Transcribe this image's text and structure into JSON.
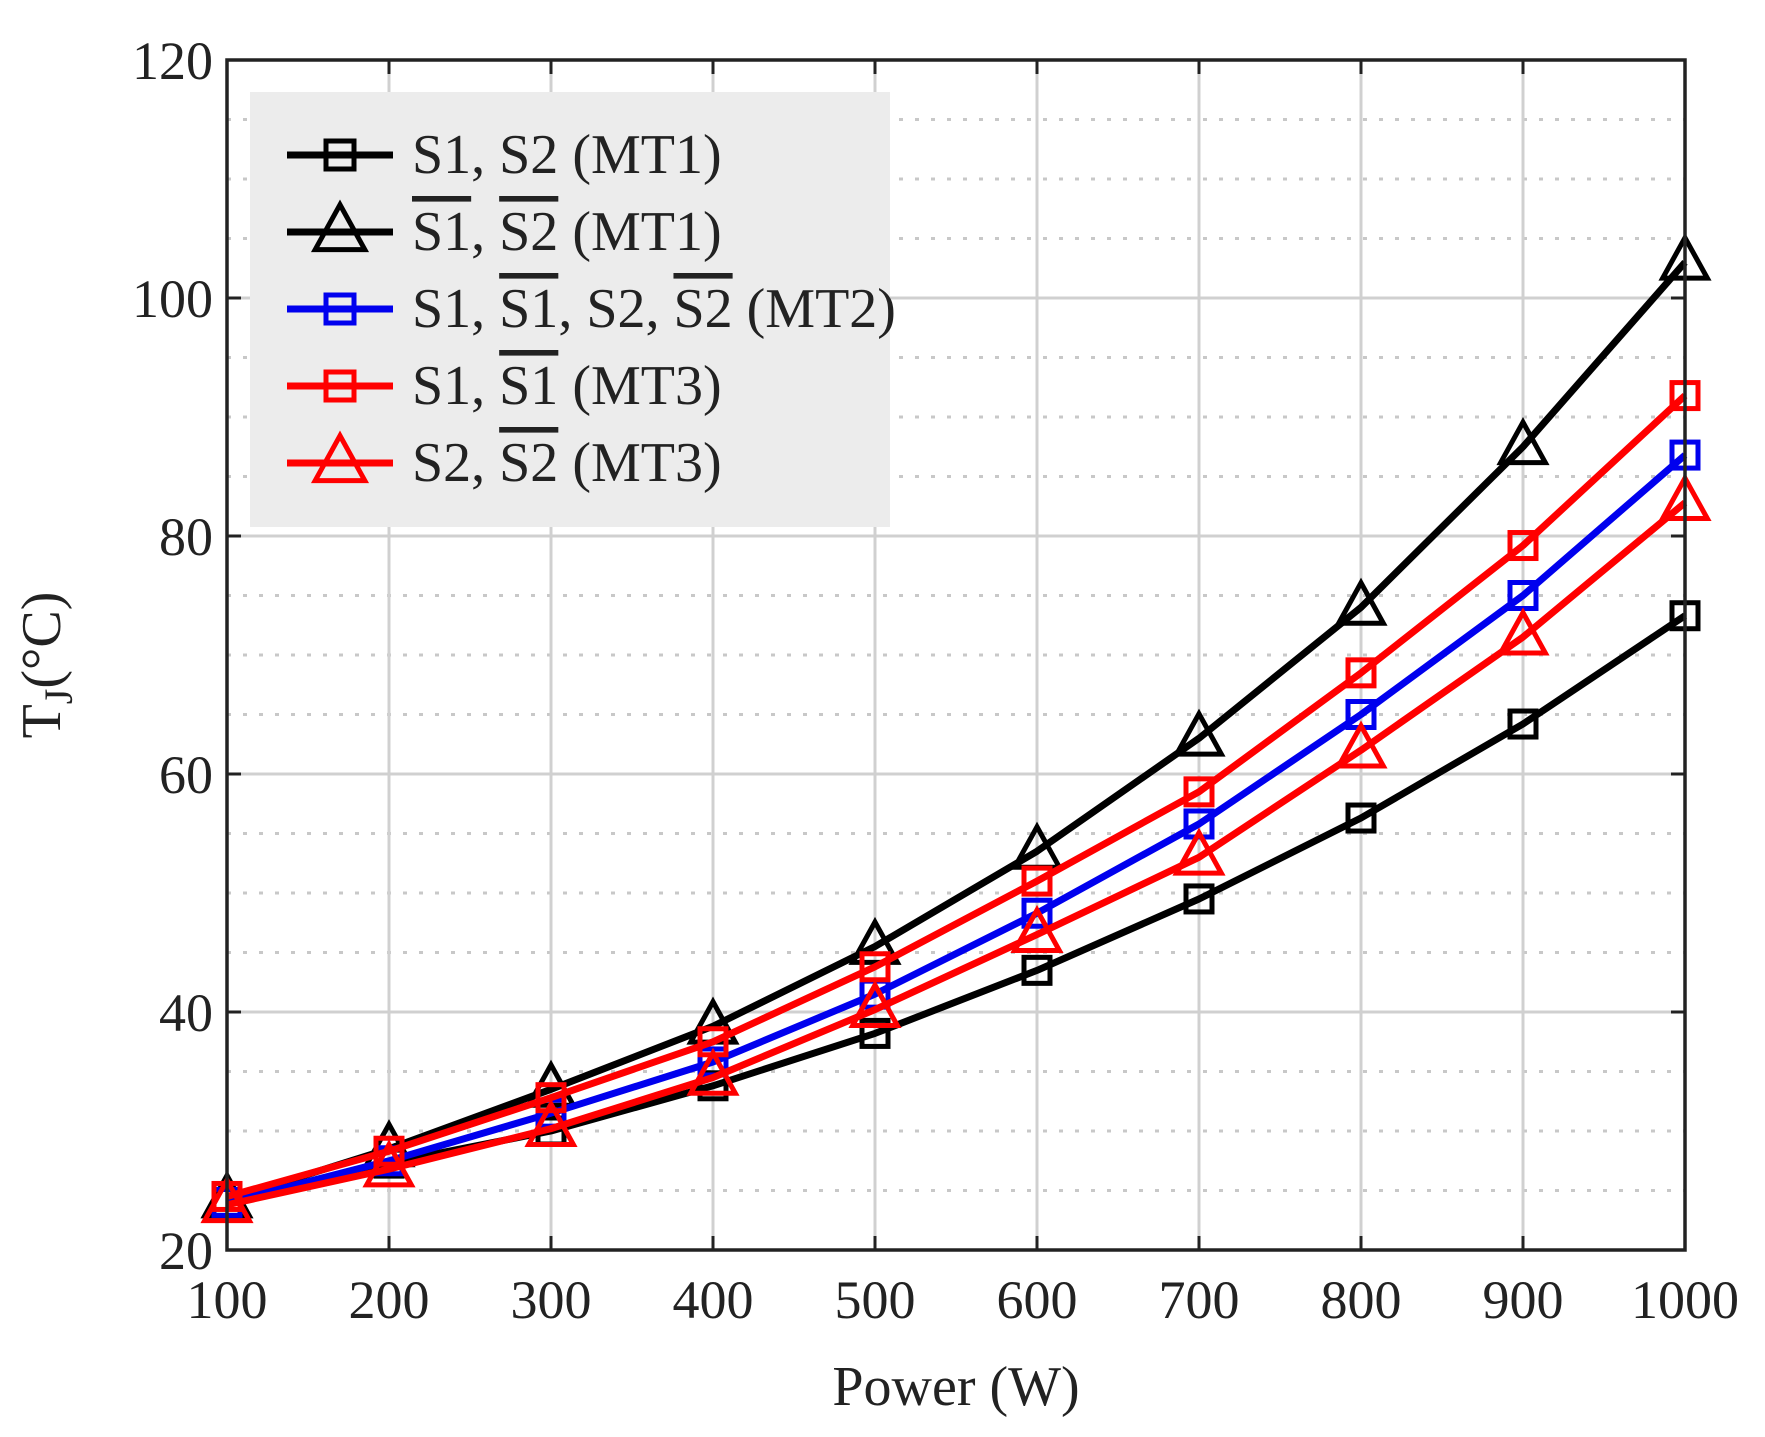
{
  "chart_data": {
    "type": "line",
    "title": "",
    "xlabel": "Power (W)",
    "ylabel_main": "T",
    "ylabel_sub": "J",
    "ylabel_unit": "(°C)",
    "x": [
      100,
      200,
      300,
      400,
      500,
      600,
      700,
      800,
      900,
      1000
    ],
    "xlim": [
      100,
      1000
    ],
    "ylim": [
      20,
      120
    ],
    "x_ticks": [
      "100",
      "200",
      "300",
      "400",
      "500",
      "600",
      "700",
      "800",
      "900",
      "1000"
    ],
    "y_ticks": [
      "20",
      "40",
      "60",
      "80",
      "100",
      "120"
    ],
    "grid": "major solid, minor dotted",
    "legend_position": "top-left",
    "series": [
      {
        "name": "S1, S2 (MT1)",
        "label_parts": [
          {
            "t": "S1",
            "bar": false
          },
          {
            "t": ", ",
            "bar": false
          },
          {
            "t": "S2",
            "bar": false
          },
          {
            "t": " (MT1)",
            "bar": false
          }
        ],
        "color": "#000000",
        "marker": "square",
        "values": [
          24.0,
          27.3,
          30.0,
          33.8,
          38.2,
          43.5,
          49.5,
          56.3,
          64.2,
          73.3
        ]
      },
      {
        "name": "S1̅, S2̅ (MT1)",
        "label_parts": [
          {
            "t": "S1",
            "bar": true
          },
          {
            "t": ", ",
            "bar": false
          },
          {
            "t": "S2",
            "bar": true
          },
          {
            "t": " (MT1)",
            "bar": false
          }
        ],
        "color": "#000000",
        "marker": "triangle",
        "values": [
          24.2,
          28.5,
          33.5,
          38.8,
          45.5,
          53.5,
          63.0,
          74.0,
          87.5,
          103.0
        ]
      },
      {
        "name": "S1, S1̅, S2, S2̅ (MT2)",
        "label_parts": [
          {
            "t": "S1",
            "bar": false
          },
          {
            "t": ", ",
            "bar": false
          },
          {
            "t": "S1",
            "bar": true
          },
          {
            "t": ", S2, ",
            "bar": false
          },
          {
            "t": "S2",
            "bar": true
          },
          {
            "t": " (MT2)",
            "bar": false
          }
        ],
        "color": "#0000ee",
        "marker": "square",
        "values": [
          24.0,
          27.5,
          31.5,
          35.8,
          41.5,
          48.3,
          55.8,
          65.0,
          75.0,
          86.8
        ]
      },
      {
        "name": "S1, S1̅ (MT3)",
        "label_parts": [
          {
            "t": "S1",
            "bar": false
          },
          {
            "t": ", ",
            "bar": false
          },
          {
            "t": "S1",
            "bar": true
          },
          {
            "t": " (MT3)",
            "bar": false
          }
        ],
        "color": "#ff0000",
        "marker": "square",
        "values": [
          24.5,
          28.3,
          32.8,
          37.5,
          43.8,
          51.0,
          58.5,
          68.5,
          79.2,
          91.8
        ]
      },
      {
        "name": "S2, S2̅ (MT3)",
        "label_parts": [
          {
            "t": "S2",
            "bar": false
          },
          {
            "t": ", ",
            "bar": false
          },
          {
            "t": "S2",
            "bar": true
          },
          {
            "t": " (MT3)",
            "bar": false
          }
        ],
        "color": "#ff0000",
        "marker": "triangle",
        "values": [
          23.8,
          26.8,
          30.2,
          34.5,
          40.2,
          46.5,
          53.0,
          62.0,
          71.5,
          82.8
        ]
      }
    ]
  }
}
